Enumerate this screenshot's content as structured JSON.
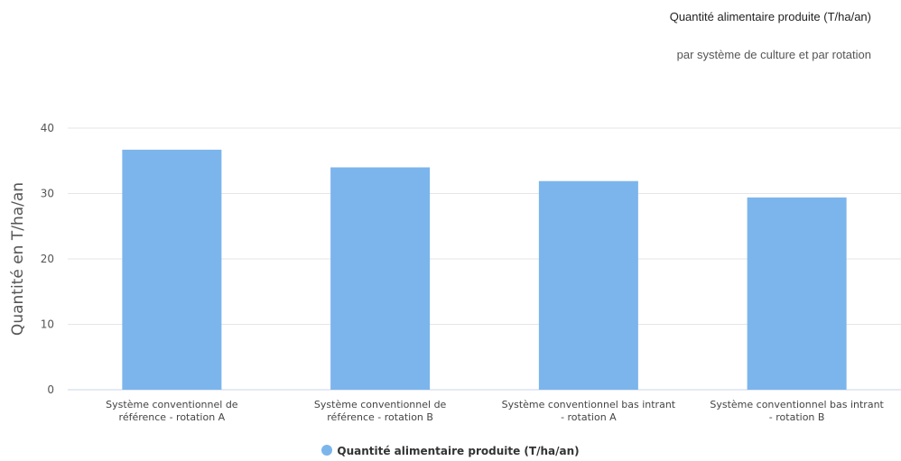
{
  "chart_data": {
    "type": "bar",
    "title": "Quantité alimentaire produite (T/ha/an)",
    "subtitle": "par système de culture et par rotation",
    "xlabel": "",
    "ylabel": "Quantité en T/ha/an",
    "categories": [
      [
        "Système conventionnel de",
        "référence - rotation A"
      ],
      [
        "Système conventionnel de",
        "référence - rotation B"
      ],
      [
        "Système conventionnel bas intrant",
        "- rotation A"
      ],
      [
        "Système conventionnel bas intrant",
        "- rotation B"
      ]
    ],
    "series": [
      {
        "name": "Quantité alimentaire produite (T/ha/an)",
        "values": [
          36.7,
          34.0,
          31.9,
          29.4
        ],
        "color": "#7cb5ec"
      }
    ],
    "ylim": [
      0,
      40
    ],
    "yticks": [
      0,
      10,
      20,
      30,
      40
    ],
    "grid": true,
    "legend_position": "bottom-center"
  }
}
